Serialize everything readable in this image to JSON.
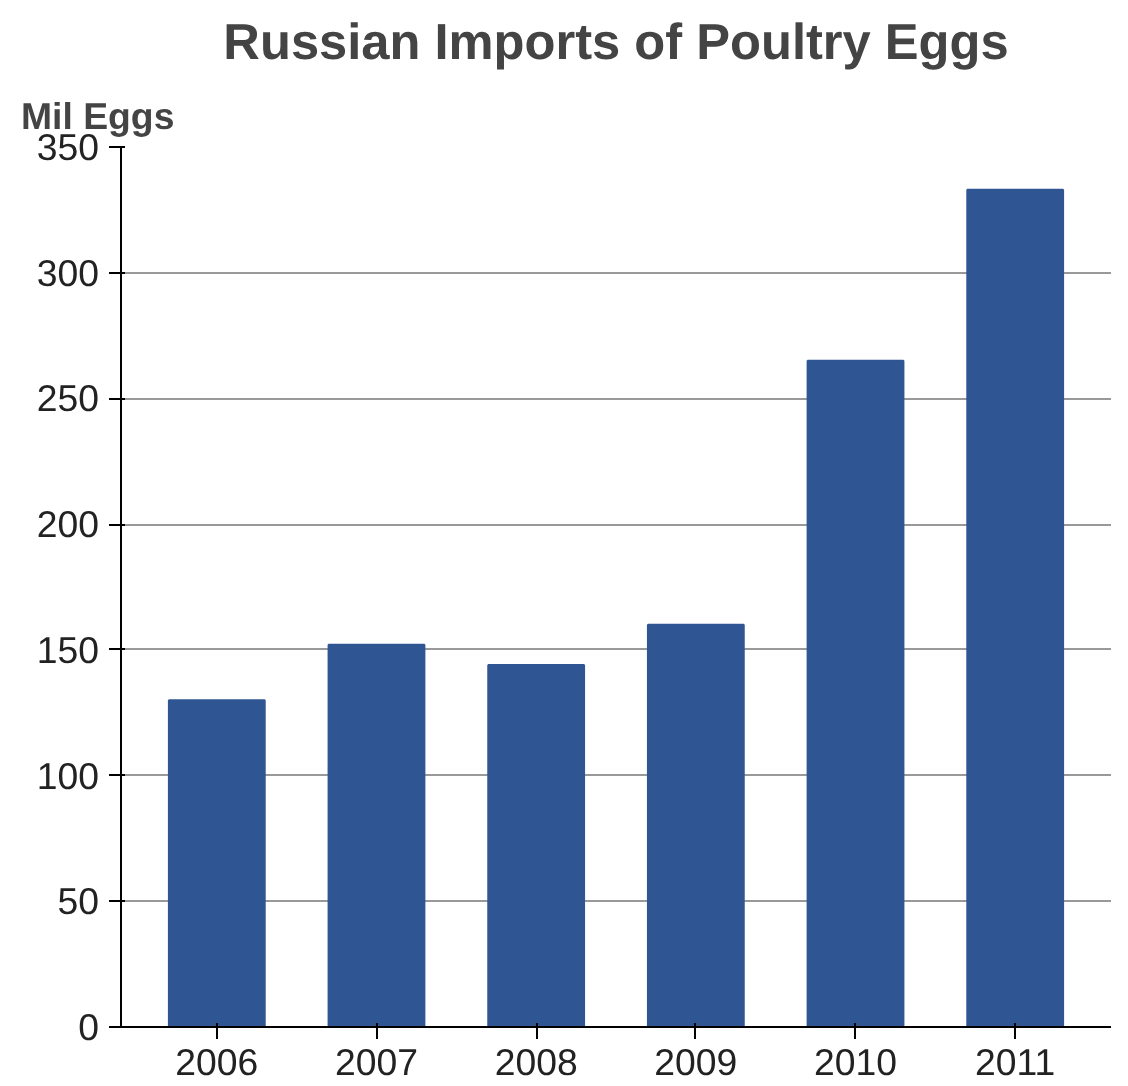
{
  "chart_data": {
    "type": "bar",
    "title": "Russian Imports of Poultry Eggs",
    "ylabel": "Mil Eggs",
    "categories": [
      "2006",
      "2007",
      "2008",
      "2009",
      "2010",
      "2011"
    ],
    "values": [
      130,
      152,
      144,
      160,
      265,
      333
    ],
    "color": "#2f5592",
    "ylim": [
      0,
      350
    ],
    "yticks": [
      0,
      50,
      100,
      150,
      200,
      250,
      300,
      350
    ],
    "grid": "y"
  }
}
